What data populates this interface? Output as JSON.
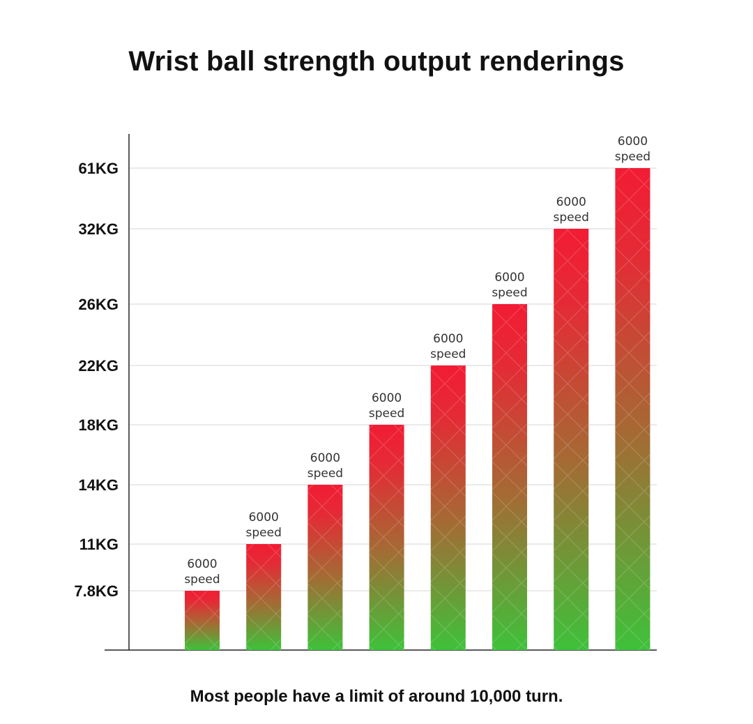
{
  "title": "Wrist ball strength output renderings",
  "footnote": "Most people have a limit of around 10,000 turn.",
  "chart_data": {
    "type": "bar",
    "title": "Wrist ball strength output renderings",
    "xlabel": "",
    "ylabel": "",
    "y_tick_labels": [
      "7.8KG",
      "11KG",
      "14KG",
      "18KG",
      "22KG",
      "26KG",
      "32KG",
      "61KG"
    ],
    "values": [
      7.8,
      11,
      14,
      18,
      22,
      26,
      32,
      61
    ],
    "value_unit": "KG",
    "bar_labels": [
      [
        "6000",
        "speed"
      ],
      [
        "6000",
        "speed"
      ],
      [
        "6000",
        "speed"
      ],
      [
        "6000",
        "speed"
      ],
      [
        "6000",
        "speed"
      ],
      [
        "6000",
        "speed"
      ],
      [
        "6000",
        "speed"
      ],
      [
        "6000",
        "speed"
      ]
    ],
    "gridlines": true,
    "bar_gradient": {
      "top": "#f21c34",
      "bottom": "#3ec13a"
    }
  }
}
